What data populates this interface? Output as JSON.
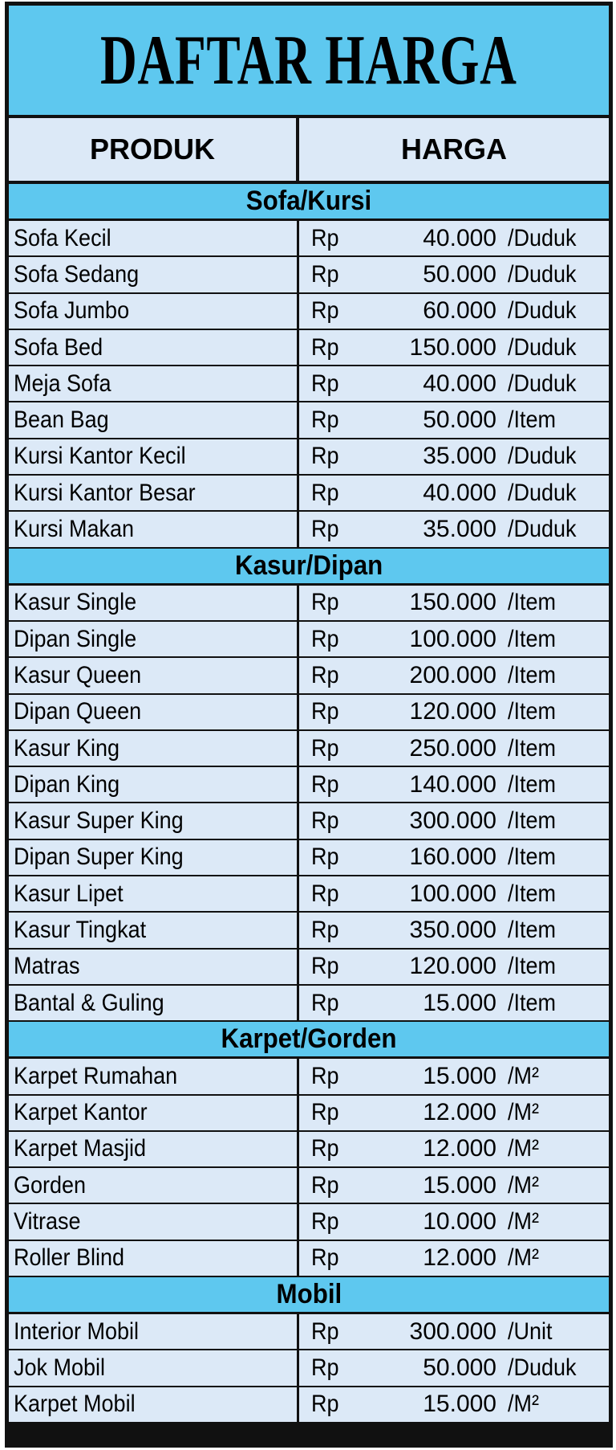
{
  "title": "DAFTAR HARGA",
  "headers": {
    "product": "PRODUK",
    "price": "HARGA"
  },
  "currency": "Rp",
  "colors": {
    "section_bg": "#5ec8ef",
    "row_bg": "#dce9f7",
    "border": "#111111"
  },
  "sections": [
    {
      "name": "Sofa/Kursi",
      "items": [
        {
          "name": "Sofa Kecil",
          "price": "40.000",
          "unit": "/Duduk"
        },
        {
          "name": "Sofa Sedang",
          "price": "50.000",
          "unit": "/Duduk"
        },
        {
          "name": "Sofa Jumbo",
          "price": "60.000",
          "unit": "/Duduk"
        },
        {
          "name": "Sofa Bed",
          "price": "150.000",
          "unit": "/Duduk"
        },
        {
          "name": "Meja Sofa",
          "price": "40.000",
          "unit": "/Duduk"
        },
        {
          "name": "Bean Bag",
          "price": "50.000",
          "unit": "/Item"
        },
        {
          "name": "Kursi Kantor Kecil",
          "price": "35.000",
          "unit": "/Duduk"
        },
        {
          "name": "Kursi Kantor Besar",
          "price": "40.000",
          "unit": "/Duduk"
        },
        {
          "name": "Kursi Makan",
          "price": "35.000",
          "unit": "/Duduk"
        }
      ]
    },
    {
      "name": "Kasur/Dipan",
      "items": [
        {
          "name": "Kasur Single",
          "price": "150.000",
          "unit": "/Item"
        },
        {
          "name": "Dipan Single",
          "price": "100.000",
          "unit": "/Item"
        },
        {
          "name": "Kasur Queen",
          "price": "200.000",
          "unit": "/Item"
        },
        {
          "name": "Dipan Queen",
          "price": "120.000",
          "unit": "/Item"
        },
        {
          "name": "Kasur King",
          "price": "250.000",
          "unit": "/Item"
        },
        {
          "name": "Dipan King",
          "price": "140.000",
          "unit": "/Item"
        },
        {
          "name": "Kasur Super King",
          "price": "300.000",
          "unit": "/Item"
        },
        {
          "name": "Dipan Super King",
          "price": "160.000",
          "unit": "/Item"
        },
        {
          "name": "Kasur Lipet",
          "price": "100.000",
          "unit": "/Item"
        },
        {
          "name": "Kasur Tingkat",
          "price": "350.000",
          "unit": "/Item"
        },
        {
          "name": "Matras",
          "price": "120.000",
          "unit": "/Item"
        },
        {
          "name": "Bantal & Guling",
          "price": "15.000",
          "unit": "/Item"
        }
      ]
    },
    {
      "name": "Karpet/Gorden",
      "items": [
        {
          "name": "Karpet Rumahan",
          "price": "15.000",
          "unit": "/M²"
        },
        {
          "name": "Karpet Kantor",
          "price": "12.000",
          "unit": "/M²"
        },
        {
          "name": "Karpet Masjid",
          "price": "12.000",
          "unit": "/M²"
        },
        {
          "name": "Gorden",
          "price": "15.000",
          "unit": "/M²"
        },
        {
          "name": "Vitrase",
          "price": "10.000",
          "unit": "/M²"
        },
        {
          "name": "Roller Blind",
          "price": "12.000",
          "unit": "/M²"
        }
      ]
    },
    {
      "name": "Mobil",
      "items": [
        {
          "name": "Interior Mobil",
          "price": "300.000",
          "unit": "/Unit"
        },
        {
          "name": "Jok Mobil",
          "price": "50.000",
          "unit": "/Duduk"
        },
        {
          "name": "Karpet Mobil",
          "price": "15.000",
          "unit": "/M²"
        }
      ]
    }
  ]
}
